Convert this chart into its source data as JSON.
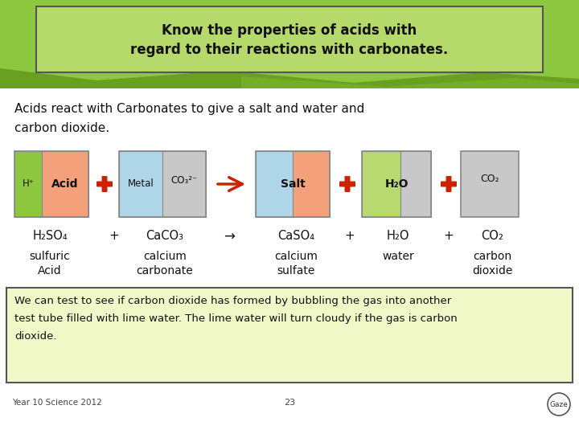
{
  "title_line1": "Know the properties of acids with",
  "title_line2": "regard to their reactions with carbonates.",
  "bg_color": "#ffffff",
  "header_bg": "#8dc63f",
  "header_box_bg": "#b5d96a",
  "header_box_edge": "#555555",
  "bottom_box_bg": "#f0f8c8",
  "bottom_box_edge": "#555555",
  "bottom_text_l1": "We can test to see if carbon dioxide has formed by bubbling the gas into another",
  "bottom_text_l2": "test tube filled with lime water. The lime water will turn cloudy if the gas is carbon",
  "bottom_text_l3": "dioxide.",
  "footer_left": "Year 10 Science 2012",
  "footer_center": "23",
  "subtitle_l1": "Acids react with Carbonates to give a salt and water and",
  "subtitle_l2": "carbon dioxide.",
  "green_col": "#8dc63f",
  "salmon_col": "#f4a07a",
  "blue_col": "#aed6e8",
  "gray_col": "#c8c8c8",
  "lgreen_col": "#b8d870",
  "red_col": "#cc2200",
  "box_edge": "#888888",
  "text_col": "#111111"
}
